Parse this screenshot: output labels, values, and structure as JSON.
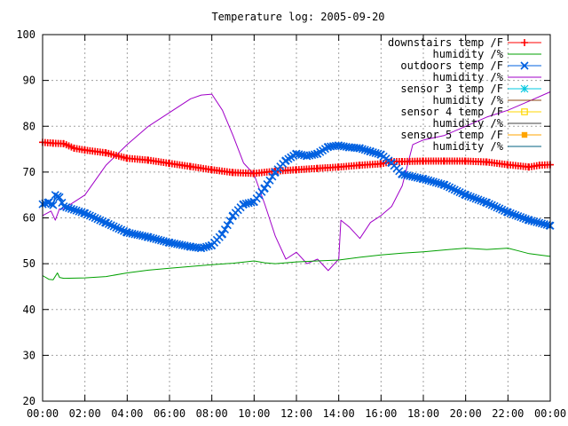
{
  "chart_data": {
    "type": "line",
    "title": "Temperature log: 2005-09-20",
    "xlabel": "",
    "ylabel": "",
    "grid": true,
    "legend_position": "top-right",
    "x_unit": "hours",
    "xlim": [
      0,
      24
    ],
    "ylim": [
      20,
      100
    ],
    "x_ticks": [
      {
        "value": 0,
        "label": "00:00"
      },
      {
        "value": 2,
        "label": "02:00"
      },
      {
        "value": 4,
        "label": "04:00"
      },
      {
        "value": 6,
        "label": "06:00"
      },
      {
        "value": 8,
        "label": "08:00"
      },
      {
        "value": 10,
        "label": "10:00"
      },
      {
        "value": 12,
        "label": "12:00"
      },
      {
        "value": 14,
        "label": "14:00"
      },
      {
        "value": 16,
        "label": "16:00"
      },
      {
        "value": 18,
        "label": "18:00"
      },
      {
        "value": 20,
        "label": "20:00"
      },
      {
        "value": 22,
        "label": "22:00"
      },
      {
        "value": 24,
        "label": "00:00"
      }
    ],
    "y_ticks": [
      20,
      30,
      40,
      50,
      60,
      70,
      80,
      90,
      100
    ],
    "series": [
      {
        "name": "downstairs temp /F",
        "color": "#ff0000",
        "marker": "plus",
        "points": [
          [
            0,
            76.5
          ],
          [
            0.5,
            76.3
          ],
          [
            1,
            76.2
          ],
          [
            1.5,
            75.2
          ],
          [
            2,
            74.8
          ],
          [
            3,
            74.2
          ],
          [
            4,
            73.0
          ],
          [
            5,
            72.6
          ],
          [
            6,
            71.9
          ],
          [
            7,
            71.2
          ],
          [
            8,
            70.5
          ],
          [
            9,
            69.9
          ],
          [
            10,
            69.7
          ],
          [
            11,
            70.2
          ],
          [
            12,
            70.5
          ],
          [
            13,
            70.8
          ],
          [
            14,
            71.1
          ],
          [
            15,
            71.5
          ],
          [
            16,
            71.8
          ],
          [
            16.5,
            72.3
          ],
          [
            17,
            72.3
          ],
          [
            18,
            72.4
          ],
          [
            19,
            72.4
          ],
          [
            20,
            72.4
          ],
          [
            21,
            72.2
          ],
          [
            22,
            71.6
          ],
          [
            23,
            71.1
          ],
          [
            23.5,
            71.5
          ],
          [
            24,
            71.6
          ]
        ]
      },
      {
        "name": "humidity /%",
        "color": "#00a000",
        "marker": "none",
        "points": [
          [
            0,
            47.4
          ],
          [
            0.3,
            46.6
          ],
          [
            0.5,
            46.5
          ],
          [
            0.7,
            48.0
          ],
          [
            0.8,
            47.0
          ],
          [
            1,
            46.8
          ],
          [
            2,
            46.9
          ],
          [
            3,
            47.2
          ],
          [
            4,
            48.0
          ],
          [
            5,
            48.6
          ],
          [
            6,
            49.0
          ],
          [
            7,
            49.4
          ],
          [
            8,
            49.8
          ],
          [
            9,
            50.1
          ],
          [
            10,
            50.6
          ],
          [
            10.5,
            50.2
          ],
          [
            11,
            50.0
          ],
          [
            12,
            50.4
          ],
          [
            13,
            50.6
          ],
          [
            14,
            50.8
          ],
          [
            15,
            51.4
          ],
          [
            16,
            51.9
          ],
          [
            17,
            52.3
          ],
          [
            18,
            52.6
          ],
          [
            19,
            53.0
          ],
          [
            20,
            53.4
          ],
          [
            21,
            53.1
          ],
          [
            22,
            53.4
          ],
          [
            22.5,
            52.8
          ],
          [
            23,
            52.2
          ],
          [
            24,
            51.6
          ]
        ]
      },
      {
        "name": "outdoors temp /F",
        "color": "#0060e0",
        "marker": "cross",
        "points": [
          [
            0,
            63.0
          ],
          [
            0.3,
            63.4
          ],
          [
            0.5,
            62.8
          ],
          [
            0.6,
            65.0
          ],
          [
            0.8,
            64.5
          ],
          [
            1,
            62.5
          ],
          [
            2,
            61.0
          ],
          [
            3,
            58.9
          ],
          [
            4,
            56.8
          ],
          [
            5,
            55.8
          ],
          [
            6,
            54.6
          ],
          [
            7,
            53.7
          ],
          [
            7.5,
            53.4
          ],
          [
            8,
            54.0
          ],
          [
            8.5,
            56.5
          ],
          [
            9,
            60.5
          ],
          [
            9.5,
            63.0
          ],
          [
            10,
            63.5
          ],
          [
            10.5,
            66.5
          ],
          [
            11,
            70.0
          ],
          [
            11.5,
            72.5
          ],
          [
            12,
            74.0
          ],
          [
            12.5,
            73.5
          ],
          [
            13,
            74.0
          ],
          [
            13.5,
            75.5
          ],
          [
            14,
            75.8
          ],
          [
            14.5,
            75.4
          ],
          [
            15,
            75.2
          ],
          [
            15.5,
            74.5
          ],
          [
            16,
            73.8
          ],
          [
            16.5,
            72.0
          ],
          [
            17,
            69.5
          ],
          [
            18,
            68.5
          ],
          [
            19,
            67.2
          ],
          [
            20,
            65.0
          ],
          [
            21,
            63.3
          ],
          [
            22,
            61.2
          ],
          [
            23,
            59.5
          ],
          [
            24,
            58.3
          ]
        ]
      },
      {
        "name": "humidity /%",
        "color": "#a000c8",
        "marker": "none",
        "points": [
          [
            0,
            60.5
          ],
          [
            0.4,
            61.5
          ],
          [
            0.6,
            59.5
          ],
          [
            0.8,
            62.0
          ],
          [
            1,
            62.0
          ],
          [
            2,
            65.0
          ],
          [
            3,
            71.5
          ],
          [
            4,
            76.0
          ],
          [
            5,
            80.0
          ],
          [
            6,
            83.0
          ],
          [
            7,
            86.0
          ],
          [
            7.5,
            86.8
          ],
          [
            8,
            87.0
          ],
          [
            8.5,
            83.5
          ],
          [
            9,
            78.0
          ],
          [
            9.5,
            72.0
          ],
          [
            10,
            69.5
          ],
          [
            10.5,
            63.0
          ],
          [
            11,
            56.0
          ],
          [
            11.5,
            51.0
          ],
          [
            12,
            52.5
          ],
          [
            12.5,
            50.0
          ],
          [
            13,
            51.0
          ],
          [
            13.5,
            48.5
          ],
          [
            14,
            51.0
          ],
          [
            14.1,
            59.5
          ],
          [
            14.5,
            58.0
          ],
          [
            15,
            55.5
          ],
          [
            15.5,
            59.0
          ],
          [
            16,
            60.5
          ],
          [
            16.5,
            62.5
          ],
          [
            17,
            67.0
          ],
          [
            17.5,
            76.0
          ],
          [
            18,
            77.0
          ],
          [
            19,
            78.0
          ],
          [
            20,
            80.0
          ],
          [
            21,
            82.0
          ],
          [
            22,
            83.5
          ],
          [
            23,
            85.5
          ],
          [
            24,
            87.5
          ]
        ]
      },
      {
        "name": "sensor 3 temp /F",
        "color": "#00c8e0",
        "marker": "star",
        "points": []
      },
      {
        "name": "humidity /%",
        "color": "#8b4513",
        "marker": "none",
        "points": []
      },
      {
        "name": "sensor 4 temp /F",
        "color": "#ffd700",
        "marker": "open-square",
        "points": []
      },
      {
        "name": "humidity /%",
        "color": "#404040",
        "marker": "none",
        "points": []
      },
      {
        "name": "sensor 5 temp /F",
        "color": "#ffa500",
        "marker": "filled-square",
        "points": []
      },
      {
        "name": "humidity /%",
        "color": "#006080",
        "marker": "none",
        "points": []
      }
    ]
  }
}
